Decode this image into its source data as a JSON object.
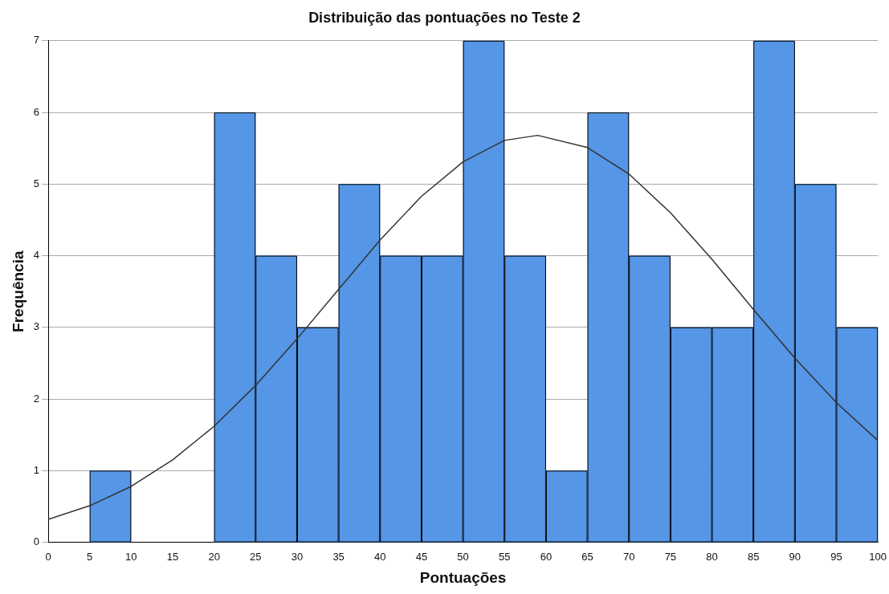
{
  "chart_data": {
    "type": "histogram",
    "title": "Distribuição das pontuações no Teste 2",
    "xlabel": "Pontuações",
    "ylabel": "Frequência",
    "bins": [
      5,
      10,
      15,
      20,
      25,
      30,
      35,
      40,
      45,
      50,
      55,
      60,
      65,
      70,
      75,
      80,
      85,
      90,
      95,
      100
    ],
    "values": [
      1,
      0,
      0,
      6,
      4,
      3,
      5,
      4,
      4,
      7,
      4,
      1,
      6,
      4,
      3,
      3,
      7,
      5,
      3
    ],
    "color": "#5596e6",
    "series": [
      {
        "type": "line",
        "color": "#333333",
        "x": [
          0,
          5,
          10,
          15,
          20,
          25,
          30,
          35,
          40,
          45,
          50,
          55,
          59,
          65,
          70,
          75,
          80,
          85,
          90,
          95,
          100
        ],
        "values": [
          0.32,
          0.51,
          0.78,
          1.15,
          1.62,
          2.19,
          2.84,
          3.53,
          4.22,
          4.83,
          5.31,
          5.61,
          5.68,
          5.51,
          5.14,
          4.6,
          3.95,
          3.25,
          2.57,
          1.95,
          1.42
        ]
      }
    ],
    "xlim": [
      0,
      100
    ],
    "xticks": [
      0,
      5,
      10,
      15,
      20,
      25,
      30,
      35,
      40,
      45,
      50,
      55,
      60,
      65,
      70,
      75,
      80,
      85,
      90,
      95,
      100
    ],
    "ylim": [
      0,
      7
    ],
    "yticks": [
      0,
      1,
      2,
      3,
      4,
      5,
      6,
      7
    ],
    "grid": "y"
  }
}
